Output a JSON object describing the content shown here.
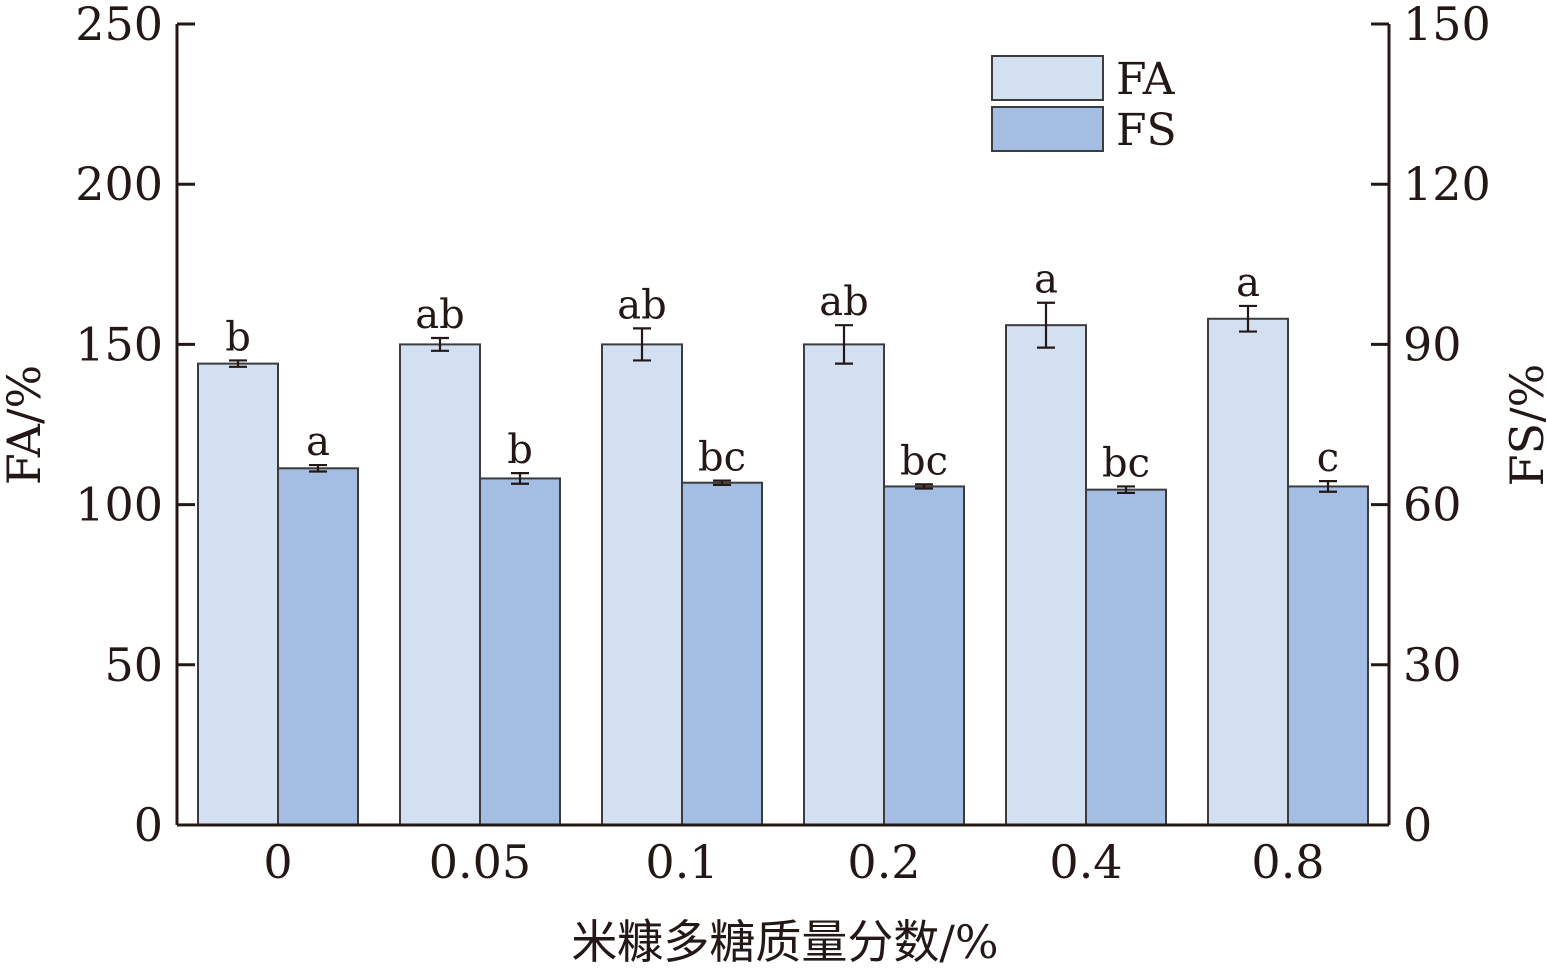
{
  "chart_data": {
    "type": "bar",
    "xlabel": "米糠多糖质量分数/%",
    "ylabel": "FA/%",
    "y2label": "FS/%",
    "categories": [
      "0",
      "0.05",
      "0.1",
      "0.2",
      "0.4",
      "0.8"
    ],
    "ylim": [
      0,
      250
    ],
    "y2lim": [
      0,
      150
    ],
    "yticks": [
      "0",
      "50",
      "100",
      "150",
      "200",
      "250"
    ],
    "y2ticks": [
      "0",
      "30",
      "60",
      "90",
      "120",
      "150"
    ],
    "legend_position": "top-right",
    "series": [
      {
        "name": "FA",
        "axis": "left",
        "color": "#d3e0f2",
        "values": [
          144,
          150,
          150,
          150,
          156,
          158
        ],
        "errors": [
          1,
          2,
          5,
          6,
          7,
          4
        ],
        "labels": [
          "b",
          "ab",
          "ab",
          "ab",
          "a",
          "a"
        ]
      },
      {
        "name": "FS",
        "axis": "right",
        "color": "#a3bde3",
        "values": [
          66.8,
          64.9,
          64.1,
          63.4,
          62.8,
          63.4
        ],
        "errors": [
          0.6,
          1.0,
          0.4,
          0.4,
          0.6,
          1.0
        ],
        "labels": [
          "a",
          "b",
          "bc",
          "bc",
          "bc",
          "c"
        ]
      }
    ]
  }
}
